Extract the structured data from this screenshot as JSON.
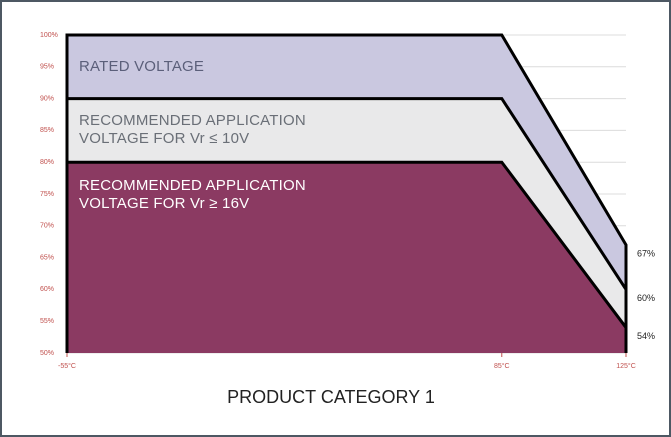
{
  "chart_data": {
    "type": "area",
    "title": "PRODUCT CATEGORY 1",
    "x": [
      -55,
      85,
      125
    ],
    "xlim": [
      -55,
      125
    ],
    "xticks": [
      {
        "value": -55,
        "label": "-55°C"
      },
      {
        "value": 85,
        "label": "85°C"
      },
      {
        "value": 125,
        "label": "125°C"
      }
    ],
    "ylim": [
      50,
      100
    ],
    "yticks": [
      {
        "value": 50,
        "label": "50%"
      },
      {
        "value": 55,
        "label": "55%"
      },
      {
        "value": 60,
        "label": "60%"
      },
      {
        "value": 65,
        "label": "65%"
      },
      {
        "value": 70,
        "label": "70%"
      },
      {
        "value": 75,
        "label": "75%"
      },
      {
        "value": 80,
        "label": "80%"
      },
      {
        "value": 85,
        "label": "85%"
      },
      {
        "value": 90,
        "label": "90%"
      },
      {
        "value": 95,
        "label": "95%"
      },
      {
        "value": 100,
        "label": "100%"
      }
    ],
    "grid": true,
    "series": [
      {
        "name": "RATED VOLTAGE",
        "color": "#cac8e0",
        "text_color": "#5b5f7a",
        "values": [
          100,
          100,
          67
        ],
        "value_labels": [
          null,
          null,
          "67%"
        ]
      },
      {
        "name": "RECOMMENDED APPLICATION VOLTAGE FOR Vr ≤ 10V",
        "color": "#e9e9ea",
        "text_color": "#6a6f77",
        "values": [
          90,
          90,
          60
        ],
        "value_labels": [
          null,
          null,
          "60%"
        ]
      },
      {
        "name": "RECOMMENDED APPLICATION VOLTAGE FOR Vr ≥ 16V",
        "color": "#8b3a62",
        "text_color": "#ffffff",
        "values": [
          80,
          80,
          54
        ],
        "value_labels": [
          null,
          null,
          "54%"
        ]
      }
    ]
  }
}
